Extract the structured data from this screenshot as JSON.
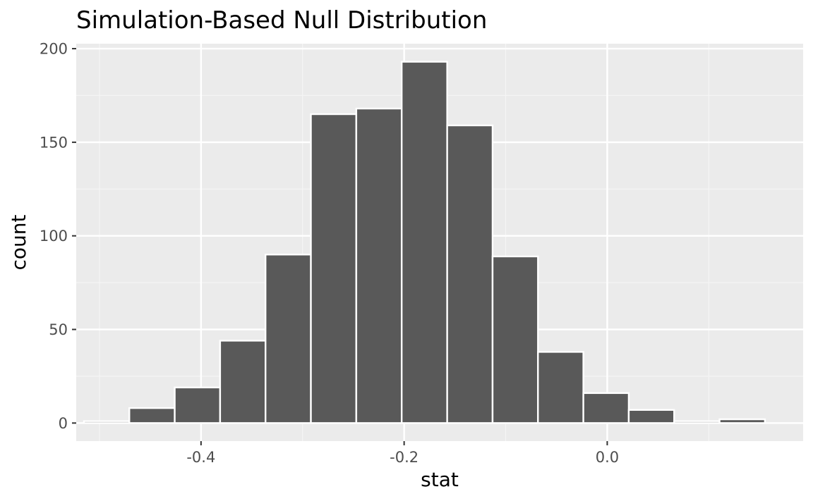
{
  "chart_data": {
    "type": "bar",
    "title": "Simulation-Based Null Distribution",
    "xlabel": "stat",
    "ylabel": "count",
    "xlim": [
      -0.5229,
      0.1929
    ],
    "ylim": [
      -9.65,
      202.65
    ],
    "x_ticks": [
      -0.4,
      -0.2,
      0.0
    ],
    "x_tick_labels": [
      "-0.4",
      "-0.2",
      "0.0"
    ],
    "x_minor_ticks": [
      -0.5,
      -0.3,
      -0.1,
      0.1
    ],
    "y_ticks": [
      0,
      50,
      100,
      150,
      200
    ],
    "y_tick_labels": [
      "0",
      "50",
      "100",
      "150",
      "200"
    ],
    "y_minor_ticks": [
      25,
      75,
      125,
      175
    ],
    "bin_width": 0.0447,
    "bins": [
      {
        "xmin": -0.5153,
        "xmax": -0.4706,
        "count": 1
      },
      {
        "xmin": -0.4706,
        "xmax": -0.4259,
        "count": 8
      },
      {
        "xmin": -0.4259,
        "xmax": -0.3812,
        "count": 19
      },
      {
        "xmin": -0.3812,
        "xmax": -0.3365,
        "count": 44
      },
      {
        "xmin": -0.3365,
        "xmax": -0.2918,
        "count": 90
      },
      {
        "xmin": -0.2918,
        "xmax": -0.2471,
        "count": 165
      },
      {
        "xmin": -0.2471,
        "xmax": -0.2024,
        "count": 168
      },
      {
        "xmin": -0.2024,
        "xmax": -0.1576,
        "count": 193
      },
      {
        "xmin": -0.1576,
        "xmax": -0.1129,
        "count": 159
      },
      {
        "xmin": -0.1129,
        "xmax": -0.0682,
        "count": 89
      },
      {
        "xmin": -0.0682,
        "xmax": -0.0235,
        "count": 38
      },
      {
        "xmin": -0.0235,
        "xmax": 0.0212,
        "count": 16
      },
      {
        "xmin": 0.0212,
        "xmax": 0.0659,
        "count": 7
      },
      {
        "xmin": 0.0659,
        "xmax": 0.1106,
        "count": 1
      },
      {
        "xmin": 0.1106,
        "xmax": 0.1553,
        "count": 2
      }
    ],
    "grid": true,
    "legend": "none",
    "colors": {
      "panel_background": "#ebebeb",
      "grid_major": "#ffffff",
      "grid_minor": "#f5f5f5",
      "bar_fill": "#595959",
      "bar_outline": "#ffffff",
      "tick_label": "#4d4d4d",
      "tick_mark": "#333333",
      "text": "#000000"
    }
  }
}
